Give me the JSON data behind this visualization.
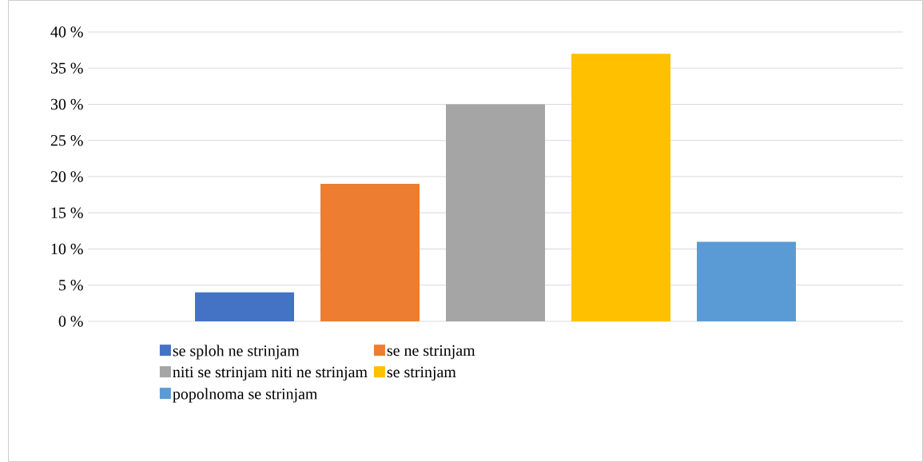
{
  "chart_data": {
    "type": "bar",
    "categories": [
      null
    ],
    "series": [
      {
        "name": "se sploh ne strinjam",
        "color": "#4472c4",
        "values": [
          4
        ]
      },
      {
        "name": "se ne strinjam",
        "color": "#ed7d31",
        "values": [
          19
        ]
      },
      {
        "name": "niti se strinjam niti ne strinjam",
        "color": "#a5a5a5",
        "values": [
          30
        ]
      },
      {
        "name": "se strinjam",
        "color": "#ffc000",
        "values": [
          37
        ]
      },
      {
        "name": "popolnoma se strinjam",
        "color": "#5b9bd5",
        "values": [
          11
        ]
      }
    ],
    "ylim": [
      0,
      40
    ],
    "yticks": [
      {
        "value": 0,
        "label": "0 %"
      },
      {
        "value": 5,
        "label": "5 %"
      },
      {
        "value": 10,
        "label": "10 %"
      },
      {
        "value": 15,
        "label": "15 %"
      },
      {
        "value": 20,
        "label": "20 %"
      },
      {
        "value": 25,
        "label": "25 %"
      },
      {
        "value": 30,
        "label": "30 %"
      },
      {
        "value": 35,
        "label": "35 %"
      },
      {
        "value": 40,
        "label": "40 %"
      }
    ],
    "grid": "y",
    "legend": "bottom"
  }
}
